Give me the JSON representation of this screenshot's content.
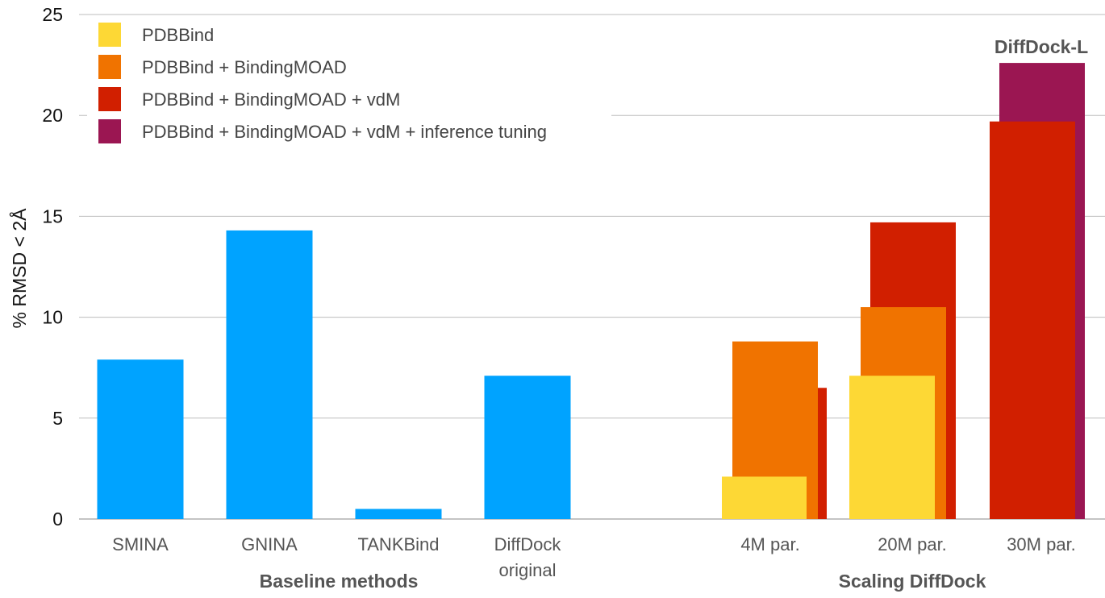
{
  "chart_data": {
    "type": "bar",
    "ylabel": "% RMSD < 2Å",
    "ylim": [
      0,
      25
    ],
    "yticks": [
      "0",
      "5",
      "10",
      "15",
      "20",
      "25"
    ],
    "grid": true,
    "legend_position": "top-left",
    "legend": [
      {
        "name": "PDBBind",
        "color": "#FDD835"
      },
      {
        "name": "PDBBind + BindingMOAD",
        "color": "#F07300"
      },
      {
        "name": "PDBBind + BindingMOAD + vdM",
        "color": "#D11F00"
      },
      {
        "name": "PDBBind + BindingMOAD + vdM + inference tuning",
        "color": "#9B1652"
      }
    ],
    "groups": [
      {
        "label": "Baseline methods",
        "categories": [
          {
            "label": "SMINA",
            "bars": [
              {
                "series": "Baseline",
                "color": "#00A3FF",
                "value": 7.9
              }
            ]
          },
          {
            "label": "GNINA",
            "bars": [
              {
                "series": "Baseline",
                "color": "#00A3FF",
                "value": 14.3
              }
            ]
          },
          {
            "label": "TANKBind",
            "bars": [
              {
                "series": "Baseline",
                "color": "#00A3FF",
                "value": 0.5
              }
            ]
          },
          {
            "label": "DiffDock original",
            "label_lines": [
              "DiffDock",
              "original"
            ],
            "bars": [
              {
                "series": "Baseline",
                "color": "#00A3FF",
                "value": 7.1
              }
            ]
          }
        ]
      },
      {
        "label": "Scaling DiffDock",
        "categories": [
          {
            "label": "4M par.",
            "bars": [
              {
                "series": "PDBBind + BindingMOAD + vdM",
                "color": "#D11F00",
                "value": 6.5
              },
              {
                "series": "PDBBind + BindingMOAD",
                "color": "#F07300",
                "value": 8.8
              },
              {
                "series": "PDBBind",
                "color": "#FDD835",
                "value": 2.1
              }
            ]
          },
          {
            "label": "20M par.",
            "bars": [
              {
                "series": "PDBBind + BindingMOAD + vdM",
                "color": "#D11F00",
                "value": 14.7
              },
              {
                "series": "PDBBind + BindingMOAD",
                "color": "#F07300",
                "value": 10.5
              },
              {
                "series": "PDBBind",
                "color": "#FDD835",
                "value": 7.1
              }
            ]
          },
          {
            "label": "30M par.",
            "bars": [
              {
                "series": "PDBBind + BindingMOAD + vdM + inference tuning",
                "color": "#9B1652",
                "value": 22.6
              },
              {
                "series": "PDBBind + BindingMOAD + vdM",
                "color": "#D11F00",
                "value": 19.7
              }
            ]
          }
        ]
      }
    ],
    "annotations": [
      {
        "text": "DiffDock-L",
        "category": "30M par."
      }
    ]
  }
}
